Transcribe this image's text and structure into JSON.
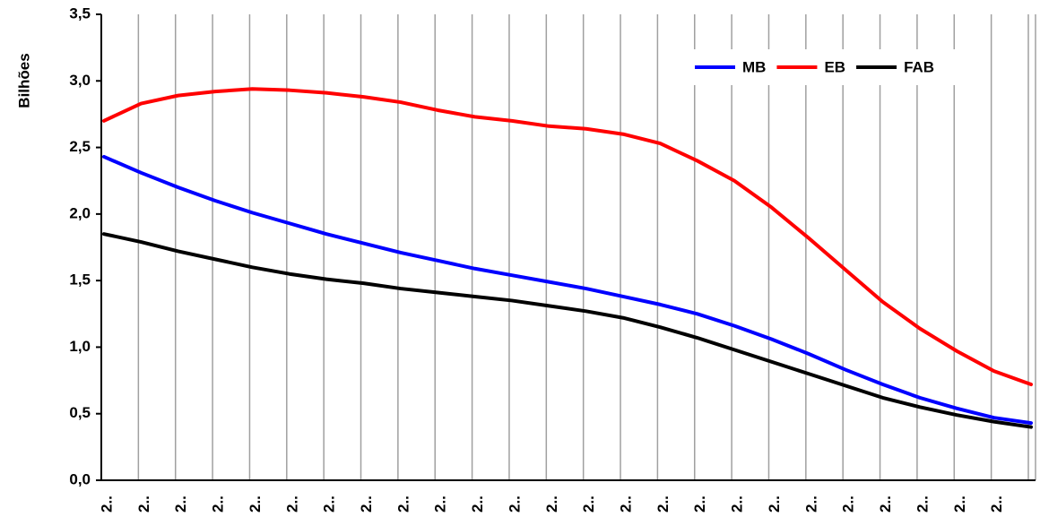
{
  "chart_data": {
    "type": "line",
    "y_label": "Bilhões",
    "categories": [
      "2..",
      "2..",
      "2..",
      "2..",
      "2..",
      "2..",
      "2..",
      "2..",
      "2..",
      "2..",
      "2..",
      "2..",
      "2..",
      "2..",
      "2..",
      "2..",
      "2..",
      "2..",
      "2..",
      "2..",
      "2..",
      "2..",
      "2..",
      "2..",
      "2..",
      null
    ],
    "series": [
      {
        "name": "MB",
        "color": "#0000ff",
        "values": [
          2.43,
          2.31,
          2.2,
          2.1,
          2.01,
          1.93,
          1.85,
          1.78,
          1.71,
          1.65,
          1.59,
          1.54,
          1.49,
          1.44,
          1.38,
          1.32,
          1.25,
          1.16,
          1.06,
          0.95,
          0.83,
          0.72,
          0.62,
          0.54,
          0.47,
          0.43
        ]
      },
      {
        "name": "EB",
        "color": "#ff0000",
        "values": [
          2.7,
          2.83,
          2.89,
          2.92,
          2.94,
          2.93,
          2.91,
          2.88,
          2.84,
          2.78,
          2.73,
          2.7,
          2.66,
          2.64,
          2.6,
          2.53,
          2.4,
          2.25,
          2.05,
          1.82,
          1.58,
          1.34,
          1.14,
          0.97,
          0.82,
          0.72
        ]
      },
      {
        "name": "FAB",
        "color": "#000000",
        "values": [
          1.85,
          1.79,
          1.72,
          1.66,
          1.6,
          1.55,
          1.51,
          1.48,
          1.44,
          1.41,
          1.38,
          1.35,
          1.31,
          1.27,
          1.22,
          1.15,
          1.07,
          0.98,
          0.89,
          0.8,
          0.71,
          0.62,
          0.55,
          0.49,
          0.44,
          0.4
        ]
      }
    ],
    "ylim": [
      0,
      3.5
    ],
    "yticks": [
      {
        "value": 0,
        "label": "0,0"
      },
      {
        "value": 0.5,
        "label": "0,5"
      },
      {
        "value": 1,
        "label": "1,0"
      },
      {
        "value": 1.5,
        "label": "1,5"
      },
      {
        "value": 2,
        "label": "2,0"
      },
      {
        "value": 2.5,
        "label": "2,5"
      },
      {
        "value": 3,
        "label": "3,0"
      },
      {
        "value": 3.5,
        "label": "3,5"
      }
    ],
    "legend": "upper right",
    "grid": "x"
  }
}
